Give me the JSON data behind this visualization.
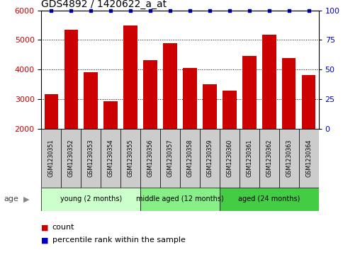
{
  "title": "GDS4892 / 1420622_a_at",
  "samples": [
    "GSM1230351",
    "GSM1230352",
    "GSM1230353",
    "GSM1230354",
    "GSM1230355",
    "GSM1230356",
    "GSM1230357",
    "GSM1230358",
    "GSM1230359",
    "GSM1230360",
    "GSM1230361",
    "GSM1230362",
    "GSM1230363",
    "GSM1230364"
  ],
  "counts": [
    3150,
    5330,
    3900,
    2920,
    5490,
    4320,
    4880,
    4060,
    3490,
    3290,
    4450,
    5180,
    4380,
    3810
  ],
  "percentiles": [
    100,
    100,
    100,
    100,
    100,
    100,
    100,
    100,
    100,
    100,
    100,
    100,
    100,
    100
  ],
  "bar_color": "#cc0000",
  "percentile_color": "#0000cc",
  "ylim_left": [
    2000,
    6000
  ],
  "ylim_right": [
    0,
    100
  ],
  "yticks_left": [
    2000,
    3000,
    4000,
    5000,
    6000
  ],
  "yticks_right": [
    0,
    25,
    50,
    75,
    100
  ],
  "groups": [
    {
      "label": "young (2 months)",
      "indices": [
        0,
        1,
        2,
        3,
        4
      ],
      "color": "#ccffcc"
    },
    {
      "label": "middle aged (12 months)",
      "indices": [
        5,
        6,
        7,
        8
      ],
      "color": "#88ee88"
    },
    {
      "label": "aged (24 months)",
      "indices": [
        9,
        10,
        11,
        12,
        13
      ],
      "color": "#44cc44"
    }
  ],
  "age_label": "age",
  "legend_count_label": "count",
  "legend_percentile_label": "percentile rank within the sample",
  "tick_bg_color": "#cccccc",
  "plot_bg_color": "#ffffff"
}
